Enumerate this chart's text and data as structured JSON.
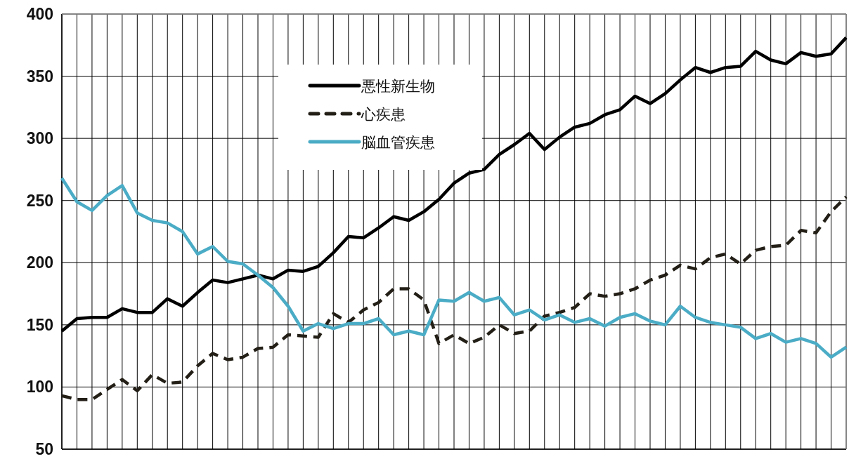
{
  "chart_data": {
    "type": "line",
    "categories": [
      null,
      null,
      null,
      null,
      null,
      null,
      null,
      null,
      null,
      null,
      null,
      null,
      null,
      null,
      null,
      null,
      null,
      null,
      null,
      null,
      null,
      null,
      null,
      null,
      null,
      null,
      null,
      null,
      null,
      null,
      null,
      null,
      null,
      null,
      null,
      null,
      null,
      null,
      null,
      null,
      null,
      null,
      null,
      null,
      null,
      null,
      null,
      null,
      null,
      null,
      null,
      null,
      null
    ],
    "series": [
      {
        "name": "悪性新生物",
        "color": "#000000",
        "line_style": "solid",
        "values": [
          145,
          155,
          156,
          156,
          163,
          160,
          160,
          171,
          165,
          176,
          186,
          184,
          187,
          190,
          187,
          194,
          193,
          197,
          208,
          221,
          220,
          228,
          237,
          234,
          241,
          251,
          264,
          272,
          275,
          287,
          295,
          304,
          291,
          301,
          309,
          312,
          319,
          323,
          334,
          328,
          336,
          347,
          357,
          353,
          357,
          358,
          370,
          363,
          360,
          369,
          366,
          368,
          381
        ]
      },
      {
        "name": "心疾患",
        "color": "#231f17",
        "line_style": "dashed",
        "values": [
          93,
          90,
          90,
          98,
          106,
          97,
          110,
          103,
          104,
          117,
          127,
          122,
          124,
          131,
          132,
          142,
          141,
          140,
          159,
          152,
          162,
          168,
          179,
          179,
          170,
          135,
          142,
          135,
          140,
          150,
          143,
          145,
          157,
          160,
          164,
          175,
          173,
          175,
          179,
          186,
          190,
          198,
          195,
          204,
          207,
          199,
          210,
          213,
          214,
          226,
          224,
          241,
          253
        ]
      },
      {
        "name": "脳血管疾患",
        "color": "#4bacc6",
        "line_style": "solid",
        "values": [
          268,
          249,
          242,
          254,
          262,
          240,
          234,
          232,
          225,
          207,
          213,
          201,
          199,
          190,
          180,
          165,
          145,
          151,
          147,
          151,
          151,
          155,
          142,
          145,
          142,
          170,
          169,
          176,
          169,
          172,
          158,
          162,
          154,
          158,
          152,
          155,
          149,
          156,
          159,
          153,
          150,
          165,
          156,
          152,
          150,
          148,
          139,
          143,
          136,
          139,
          135,
          124,
          132
        ]
      }
    ],
    "ylim": [
      50,
      400
    ],
    "yticks": [
      50,
      100,
      150,
      200,
      250,
      300,
      350,
      400
    ],
    "grid": true,
    "legend": "top"
  }
}
